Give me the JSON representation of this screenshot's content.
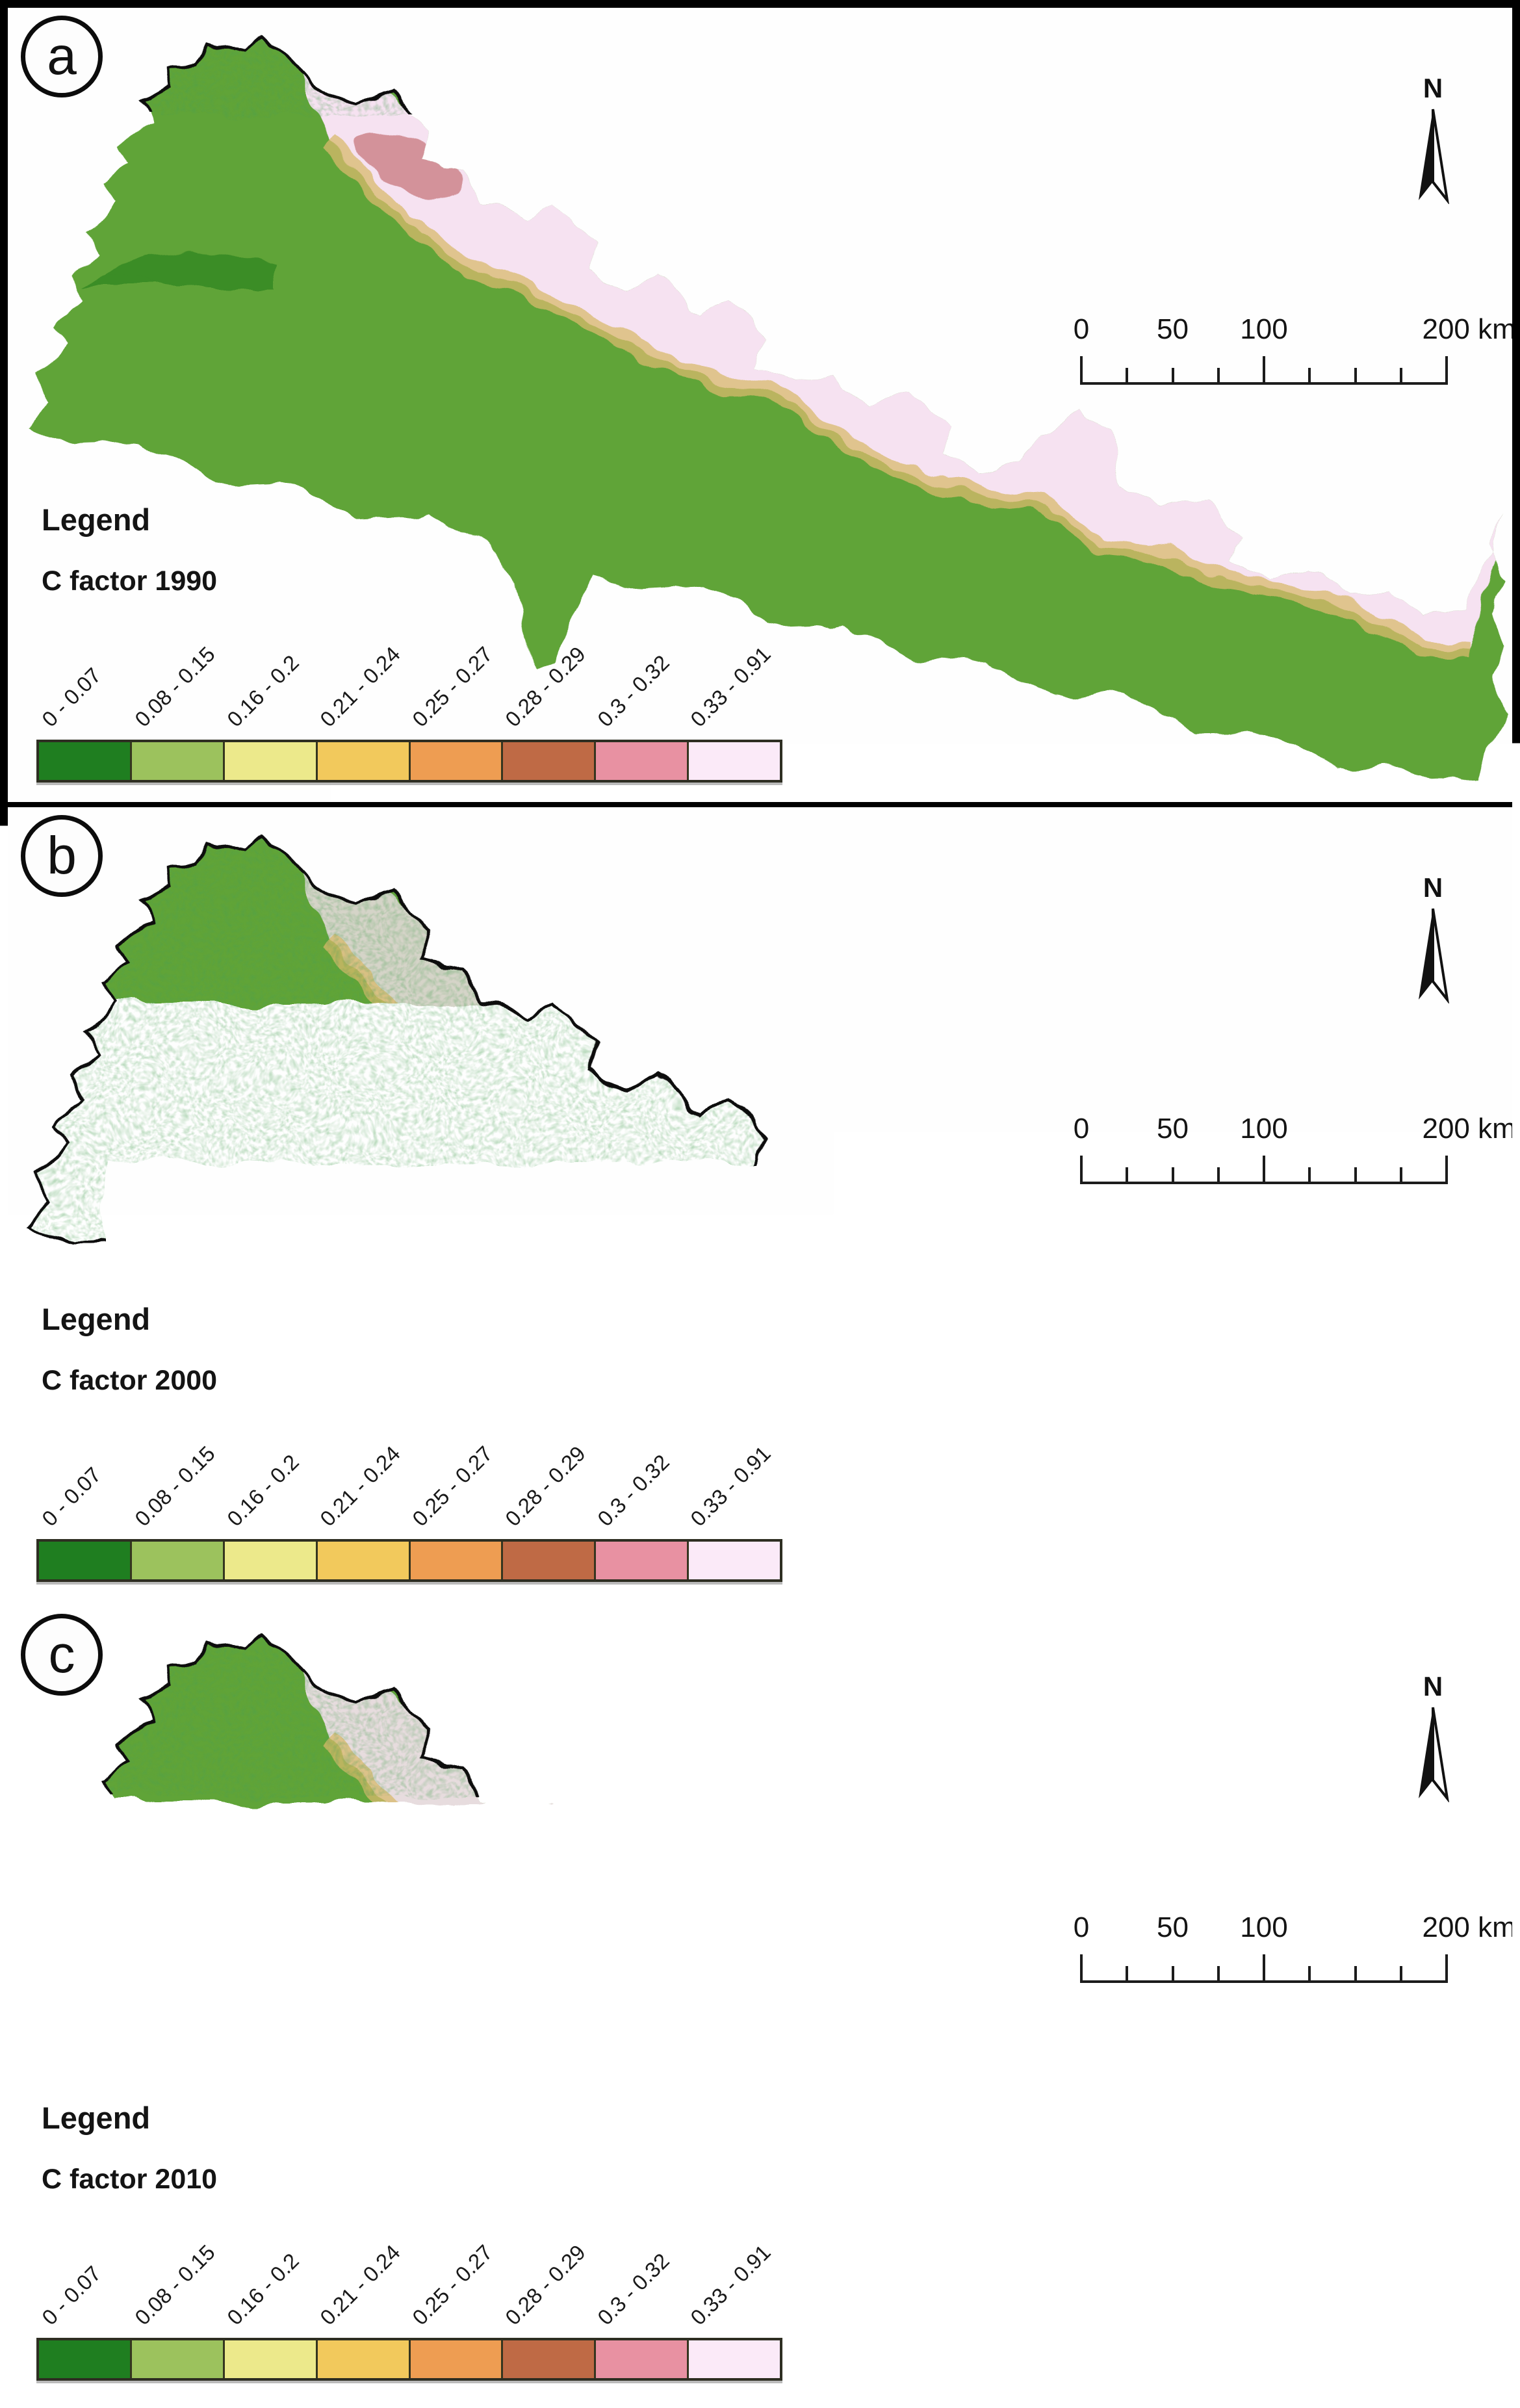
{
  "panels": [
    {
      "label": "a",
      "legend_heading": "Legend",
      "map_title": "C factor 1990",
      "north_label": "N",
      "scalebar_labels": [
        "0",
        "50",
        "100",
        "200 km"
      ]
    },
    {
      "label": "b",
      "legend_heading": "Legend",
      "map_title": "C factor 2000",
      "north_label": "N",
      "scalebar_labels": [
        "0",
        "50",
        "100",
        "200 km"
      ]
    },
    {
      "label": "c",
      "legend_heading": "Legend",
      "map_title": "C factor 2010",
      "north_label": "N",
      "scalebar_labels": [
        "0",
        "50",
        "100",
        "200 km"
      ]
    }
  ],
  "legend": {
    "classes": [
      "0 - 0.07",
      "0.08 - 0.15",
      "0.16 - 0.2",
      "0.21 - 0.24",
      "0.25 - 0.27",
      "0.28 - 0.29",
      "0.3 - 0.32",
      "0.33 - 0.91"
    ],
    "colors": [
      "#1f7e20",
      "#9cc25d",
      "#ece98b",
      "#f2c95c",
      "#ee9d52",
      "#bf6a45",
      "#e891a2",
      "#fbeaf8"
    ]
  },
  "scalebar": {
    "tick_interval_km": 25,
    "labels": [
      "0",
      "50",
      "100",
      "200 km"
    ]
  },
  "map_colors": {
    "base_green": "#61a437",
    "dark_green": "#1d7a1d",
    "high_mountain_pink": "#f6e2f1",
    "rose": "#d08a90",
    "terai_yellow": "#edc75e",
    "terai_orange": "#ec9b50",
    "outline": "#0f0f0f"
  }
}
